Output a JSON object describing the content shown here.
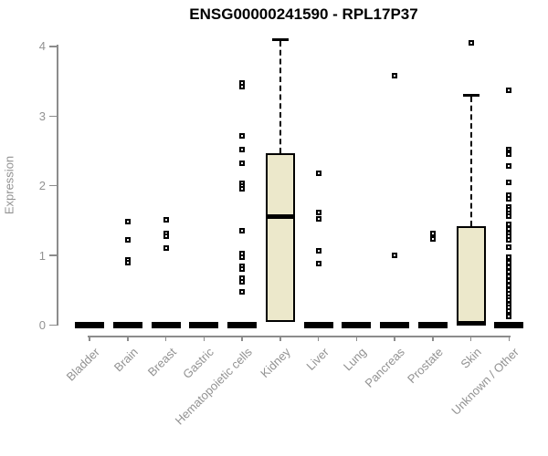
{
  "title": "ENSG00000241590 - RPL17P37",
  "y_axis_label": "Expression",
  "chart_data": {
    "type": "boxplot",
    "title": "ENSG00000241590 - RPL17P37",
    "xlabel": "",
    "ylabel": "Expression",
    "ylim": [
      0,
      4.15
    ],
    "yticks": [
      0,
      1,
      2,
      3,
      4
    ],
    "grid": false,
    "legend": "none",
    "box_fill_color": "#ece8cb",
    "box_border_color": "#000000",
    "axis_color": "#8c8c8c",
    "tick_text_color": "#929292",
    "categories": [
      "Bladder",
      "Brain",
      "Breast",
      "Gastric",
      "Hematopoietic cells",
      "Kidney",
      "Liver",
      "Lung",
      "Pancreas",
      "Prostate",
      "Skin",
      "Unknown / Other"
    ],
    "series": [
      {
        "name": "Bladder",
        "q1": 0,
        "median": 0,
        "q3": 0,
        "whisker_low": 0,
        "whisker_high": 0,
        "collapsed": true,
        "outliers": []
      },
      {
        "name": "Brain",
        "q1": 0,
        "median": 0,
        "q3": 0,
        "whisker_low": 0,
        "whisker_high": 0,
        "collapsed": true,
        "outliers": [
          1.49,
          1.23,
          0.94,
          0.9
        ]
      },
      {
        "name": "Breast",
        "q1": 0,
        "median": 0,
        "q3": 0,
        "whisker_low": 0,
        "whisker_high": 0,
        "collapsed": true,
        "outliers": [
          1.51,
          1.32,
          1.27,
          1.1
        ]
      },
      {
        "name": "Gastric",
        "q1": 0,
        "median": 0,
        "q3": 0,
        "whisker_low": 0,
        "whisker_high": 0,
        "collapsed": true,
        "outliers": []
      },
      {
        "name": "Hematopoietic cells",
        "q1": 0,
        "median": 0,
        "q3": 0,
        "whisker_low": 0,
        "whisker_high": 0,
        "collapsed": true,
        "outliers": [
          3.47,
          3.42,
          2.71,
          2.52,
          2.32,
          2.03,
          2.0,
          1.96,
          1.36,
          1.03,
          0.98,
          0.85,
          0.8,
          0.67,
          0.62,
          0.48
        ]
      },
      {
        "name": "Kidney",
        "q1": 0.04,
        "median": 1.56,
        "q3": 2.47,
        "whisker_low": 0.04,
        "whisker_high": 4.1,
        "collapsed": false,
        "outliers": []
      },
      {
        "name": "Liver",
        "q1": 0,
        "median": 0,
        "q3": 0,
        "whisker_low": 0,
        "whisker_high": 0,
        "collapsed": true,
        "outliers": [
          2.18,
          1.61,
          1.52,
          1.07,
          0.89
        ]
      },
      {
        "name": "Lung",
        "q1": 0,
        "median": 0,
        "q3": 0,
        "whisker_low": 0,
        "whisker_high": 0,
        "collapsed": true,
        "outliers": []
      },
      {
        "name": "Pancreas",
        "q1": 0,
        "median": 0,
        "q3": 0,
        "whisker_low": 0,
        "whisker_high": 0,
        "collapsed": true,
        "outliers": [
          3.58,
          1.0
        ]
      },
      {
        "name": "Prostate",
        "q1": 0,
        "median": 0,
        "q3": 0,
        "whisker_low": 0,
        "whisker_high": 0,
        "collapsed": true,
        "outliers": [
          1.32,
          1.24
        ]
      },
      {
        "name": "Skin",
        "q1": 0,
        "median": 0.03,
        "q3": 1.42,
        "whisker_low": 0,
        "whisker_high": 3.3,
        "collapsed": false,
        "outliers": [
          4.05
        ]
      },
      {
        "name": "Unknown / Other",
        "q1": 0,
        "median": 0,
        "q3": 0,
        "whisker_low": 0,
        "whisker_high": 0,
        "collapsed": true,
        "outliers": [
          3.37,
          2.52,
          2.48,
          2.45,
          2.29,
          2.05,
          1.87,
          1.81,
          1.7,
          1.65,
          1.6,
          1.57,
          1.44,
          1.38,
          1.32,
          1.28,
          1.22,
          1.12,
          0.98,
          0.9,
          0.83,
          0.76,
          0.7,
          0.63,
          0.57,
          0.5,
          0.45,
          0.4,
          0.36,
          0.3,
          0.26,
          0.2,
          0.13
        ]
      }
    ]
  }
}
